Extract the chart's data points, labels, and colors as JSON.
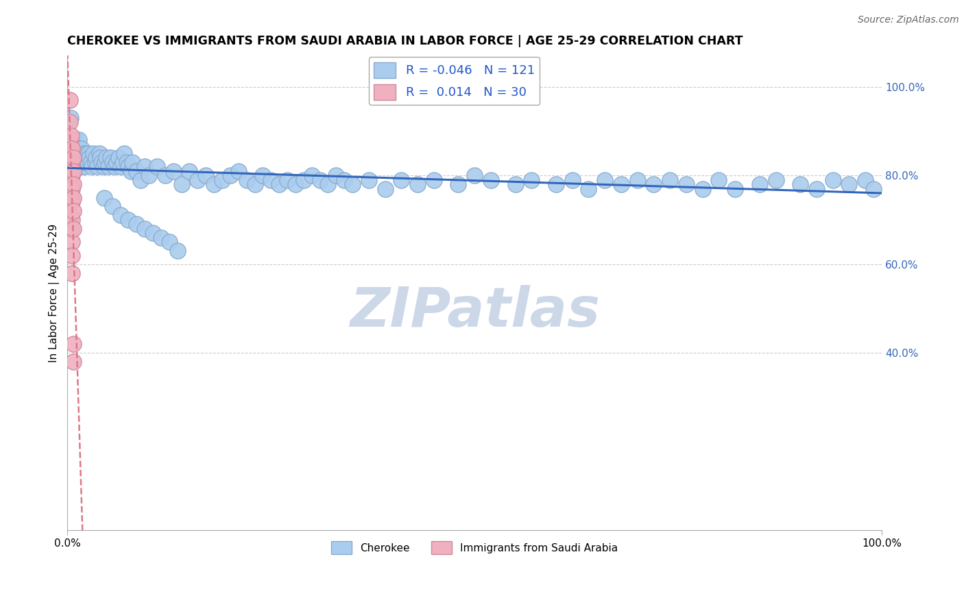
{
  "title": "CHEROKEE VS IMMIGRANTS FROM SAUDI ARABIA IN LABOR FORCE | AGE 25-29 CORRELATION CHART",
  "source": "Source: ZipAtlas.com",
  "ylabel": "In Labor Force | Age 25-29",
  "xlim": [
    0.0,
    1.0
  ],
  "ylim": [
    0.0,
    1.07
  ],
  "cherokee_R": -0.046,
  "cherokee_N": 121,
  "saudi_R": 0.014,
  "saudi_N": 30,
  "cherokee_color": "#aaccee",
  "cherokee_edge_color": "#88aacc",
  "saudi_color": "#f0b0c0",
  "saudi_edge_color": "#cc8898",
  "cherokee_line_color": "#3366bb",
  "saudi_line_color": "#dd7788",
  "background_color": "#ffffff",
  "grid_color": "#cccccc",
  "watermark_color": "#ccd8e8",
  "title_fontsize": 12.5,
  "tick_fontsize": 11,
  "legend_fontsize": 13,
  "cherokee_x": [
    0.004,
    0.006,
    0.007,
    0.008,
    0.008,
    0.009,
    0.009,
    0.01,
    0.01,
    0.011,
    0.012,
    0.012,
    0.013,
    0.014,
    0.015,
    0.015,
    0.016,
    0.017,
    0.018,
    0.019,
    0.02,
    0.021,
    0.022,
    0.023,
    0.025,
    0.026,
    0.027,
    0.028,
    0.03,
    0.032,
    0.034,
    0.035,
    0.037,
    0.039,
    0.04,
    0.042,
    0.044,
    0.046,
    0.048,
    0.05,
    0.053,
    0.055,
    0.058,
    0.06,
    0.063,
    0.065,
    0.068,
    0.07,
    0.073,
    0.075,
    0.078,
    0.08,
    0.085,
    0.09,
    0.095,
    0.1,
    0.11,
    0.12,
    0.13,
    0.14,
    0.15,
    0.16,
    0.17,
    0.18,
    0.19,
    0.2,
    0.21,
    0.22,
    0.23,
    0.24,
    0.25,
    0.26,
    0.27,
    0.28,
    0.29,
    0.3,
    0.31,
    0.32,
    0.33,
    0.34,
    0.35,
    0.37,
    0.39,
    0.41,
    0.43,
    0.45,
    0.48,
    0.5,
    0.52,
    0.55,
    0.57,
    0.6,
    0.62,
    0.64,
    0.66,
    0.68,
    0.7,
    0.72,
    0.74,
    0.76,
    0.78,
    0.8,
    0.82,
    0.85,
    0.87,
    0.9,
    0.92,
    0.94,
    0.96,
    0.98,
    0.99,
    0.045,
    0.055,
    0.065,
    0.075,
    0.085,
    0.095,
    0.105,
    0.115,
    0.125,
    0.135
  ],
  "cherokee_y": [
    0.93,
    0.88,
    0.88,
    0.87,
    0.85,
    0.86,
    0.84,
    0.88,
    0.83,
    0.86,
    0.85,
    0.83,
    0.84,
    0.88,
    0.86,
    0.83,
    0.84,
    0.86,
    0.82,
    0.84,
    0.85,
    0.82,
    0.83,
    0.85,
    0.83,
    0.85,
    0.84,
    0.83,
    0.82,
    0.85,
    0.83,
    0.84,
    0.82,
    0.85,
    0.84,
    0.83,
    0.82,
    0.83,
    0.84,
    0.82,
    0.84,
    0.83,
    0.82,
    0.83,
    0.84,
    0.82,
    0.83,
    0.85,
    0.83,
    0.82,
    0.81,
    0.83,
    0.81,
    0.79,
    0.82,
    0.8,
    0.82,
    0.8,
    0.81,
    0.78,
    0.81,
    0.79,
    0.8,
    0.78,
    0.79,
    0.8,
    0.81,
    0.79,
    0.78,
    0.8,
    0.79,
    0.78,
    0.79,
    0.78,
    0.79,
    0.8,
    0.79,
    0.78,
    0.8,
    0.79,
    0.78,
    0.79,
    0.77,
    0.79,
    0.78,
    0.79,
    0.78,
    0.8,
    0.79,
    0.78,
    0.79,
    0.78,
    0.79,
    0.77,
    0.79,
    0.78,
    0.79,
    0.78,
    0.79,
    0.78,
    0.77,
    0.79,
    0.77,
    0.78,
    0.79,
    0.78,
    0.77,
    0.79,
    0.78,
    0.79,
    0.77,
    0.75,
    0.73,
    0.71,
    0.7,
    0.69,
    0.68,
    0.67,
    0.66,
    0.65,
    0.63
  ],
  "saudi_x": [
    0.003,
    0.003,
    0.004,
    0.004,
    0.004,
    0.004,
    0.005,
    0.005,
    0.005,
    0.005,
    0.005,
    0.005,
    0.005,
    0.006,
    0.006,
    0.006,
    0.006,
    0.006,
    0.006,
    0.006,
    0.006,
    0.006,
    0.007,
    0.007,
    0.007,
    0.007,
    0.007,
    0.007,
    0.007,
    0.007
  ],
  "saudi_y": [
    0.97,
    0.92,
    0.88,
    0.83,
    0.8,
    0.76,
    0.89,
    0.85,
    0.82,
    0.78,
    0.75,
    0.71,
    0.68,
    0.86,
    0.83,
    0.8,
    0.77,
    0.74,
    0.7,
    0.65,
    0.62,
    0.58,
    0.84,
    0.81,
    0.78,
    0.75,
    0.72,
    0.68,
    0.42,
    0.38
  ]
}
